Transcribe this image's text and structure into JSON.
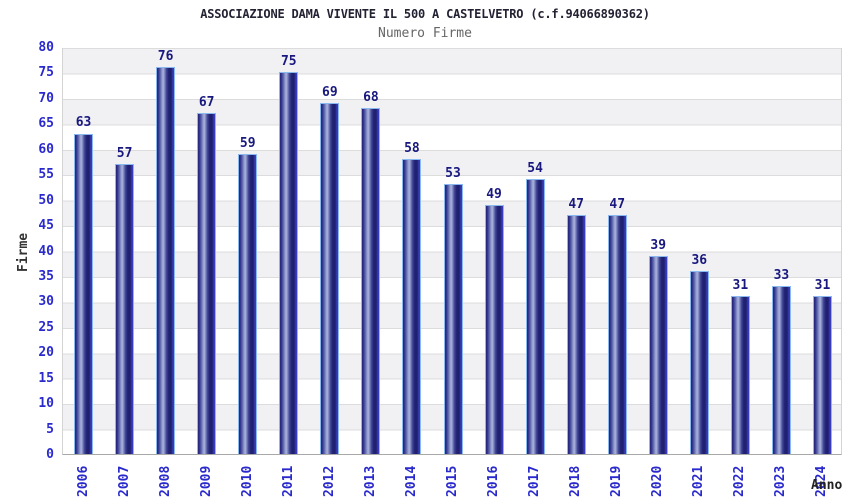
{
  "header": {
    "title": "ASSOCIAZIONE DAMA VIVENTE IL 500 A CASTELVETRO (c.f.94066890362)",
    "subtitle": "Numero Firme"
  },
  "chart_data": {
    "type": "bar",
    "title": "ASSOCIAZIONE DAMA VIVENTE IL 500 A CASTELVETRO (c.f.94066890362)",
    "subtitle": "Numero Firme",
    "xlabel": "Anno",
    "ylabel": "Firme",
    "categories": [
      "2006",
      "2007",
      "2008",
      "2009",
      "2010",
      "2011",
      "2012",
      "2013",
      "2014",
      "2015",
      "2016",
      "2017",
      "2018",
      "2019",
      "2020",
      "2021",
      "2022",
      "2023",
      "2024"
    ],
    "values": [
      63,
      57,
      76,
      67,
      59,
      75,
      69,
      68,
      58,
      53,
      49,
      54,
      47,
      47,
      39,
      36,
      31,
      33,
      31
    ],
    "ylim": [
      0,
      80
    ],
    "ytick_step": 5,
    "grid": "horizontal gridlines every 5 with alternating gray/white bands",
    "legend": "none",
    "bar_value_labels": true,
    "colors": {
      "bar_dark": "#242478",
      "bar_highlight": "#a9b2dc",
      "bar_border": "#8ab9f0",
      "axis_tick_text": "#2a2acc",
      "value_label_text": "#18187e",
      "title_text": "#222233",
      "subtitle_text": "#666666",
      "band_gray": "#f1f1f4",
      "band_white": "#ffffff",
      "gridline": "#dcdcdc",
      "axis_line": "#a9a9a9"
    }
  }
}
